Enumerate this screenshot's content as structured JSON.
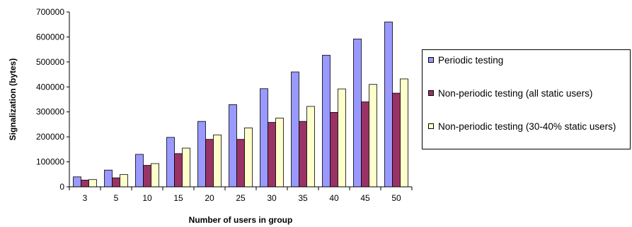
{
  "chart_data": {
    "type": "bar",
    "categories": [
      "3",
      "5",
      "10",
      "15",
      "20",
      "25",
      "30",
      "35",
      "40",
      "45",
      "50"
    ],
    "series": [
      {
        "name": "Periodic testing",
        "color": "#9999FF",
        "values": [
          40000,
          67000,
          130000,
          198000,
          262000,
          329000,
          393000,
          460000,
          527000,
          592000,
          660000
        ]
      },
      {
        "name": "Non-periodic testing (all static users)",
        "color": "#993366",
        "values": [
          27000,
          36000,
          86000,
          133000,
          190000,
          190000,
          258000,
          262000,
          298000,
          340000,
          375000
        ]
      },
      {
        "name": "Non-periodic testing (30-40% static users)",
        "color": "#FFFFCC",
        "values": [
          29000,
          49000,
          93000,
          155000,
          208000,
          236000,
          275000,
          322000,
          392000,
          410000,
          432000
        ]
      }
    ],
    "xlabel": "Number of users in group",
    "ylabel": "Signalization (bytes)",
    "ylim": [
      0,
      700000
    ],
    "yticks": [
      "0",
      "100000",
      "200000",
      "300000",
      "400000",
      "500000",
      "600000",
      "700000"
    ],
    "grid": false,
    "legend_position": "right"
  }
}
